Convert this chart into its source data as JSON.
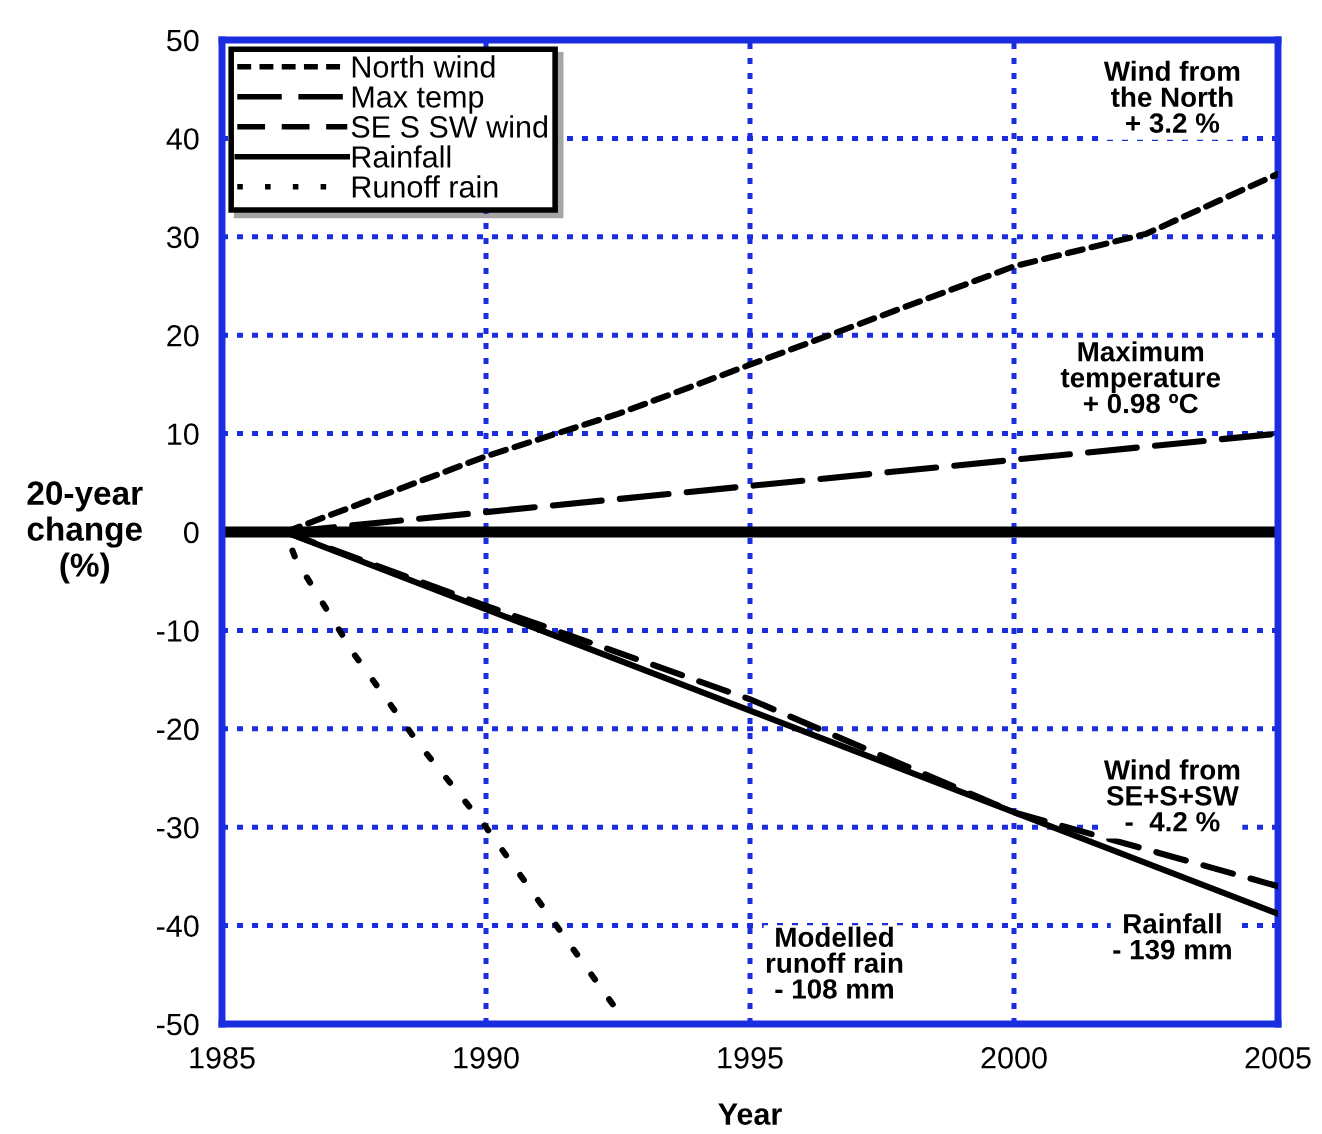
{
  "chart_data": {
    "type": "line",
    "xlabel": "Year",
    "ylabel": "20-year\nchange\n(%)",
    "xlim": [
      1985,
      2005
    ],
    "xticks": [
      1985,
      1990,
      1995,
      2000,
      2005
    ],
    "ylim": [
      -50,
      50
    ],
    "yticks": [
      -50,
      -40,
      -30,
      -20,
      -10,
      0,
      10,
      20,
      30,
      40,
      50
    ],
    "grid": true,
    "legend": "top left",
    "marker": "none",
    "series": [
      {
        "name": "North wind",
        "color": "#000000",
        "line_style": "dashed",
        "x": [
          1986.2,
          1990,
          1992.5,
          1995,
          1997.5,
          2000,
          2002.5,
          2005
        ],
        "values": [
          0,
          7.7,
          12,
          17,
          22,
          27,
          30.3,
          36.4
        ]
      },
      {
        "name": "Max temp",
        "color": "#000000",
        "line_style": "dashed",
        "x": [
          1986.2,
          2005
        ],
        "values": [
          0,
          10
        ]
      },
      {
        "name": "SE S SW wind",
        "color": "#000000",
        "line_style": "dashed",
        "x": [
          1986.2,
          1990,
          1995,
          2000,
          2005
        ],
        "values": [
          0,
          -7.5,
          -17,
          -28.5,
          -36
        ]
      },
      {
        "name": "Rainfall",
        "color": "#000000",
        "line_style": "solid",
        "x": [
          1986.2,
          2005
        ],
        "values": [
          0,
          -38.8
        ]
      },
      {
        "name": "Runoff rain",
        "color": "#000000",
        "line_style": "dotted",
        "x": [
          1986.2,
          1986.4,
          1987.5,
          1988.75,
          1990,
          1992.4
        ],
        "values": [
          0,
          -2.8,
          -12.4,
          -21.7,
          -30,
          -48
        ]
      }
    ],
    "ref_lines": [
      {
        "axis": "y",
        "value": 0,
        "color": "#000000"
      }
    ],
    "annotations": [
      "Wind from\nthe North\n+ 3.2 %",
      "Maximum\ntemperature\n+ 0.98 ºC",
      "Wind from\nSE+S+SW\n-  4.2 %",
      "Rainfall\n- 139 mm",
      "Modelled\nrunoff rain\n- 108 mm"
    ]
  }
}
